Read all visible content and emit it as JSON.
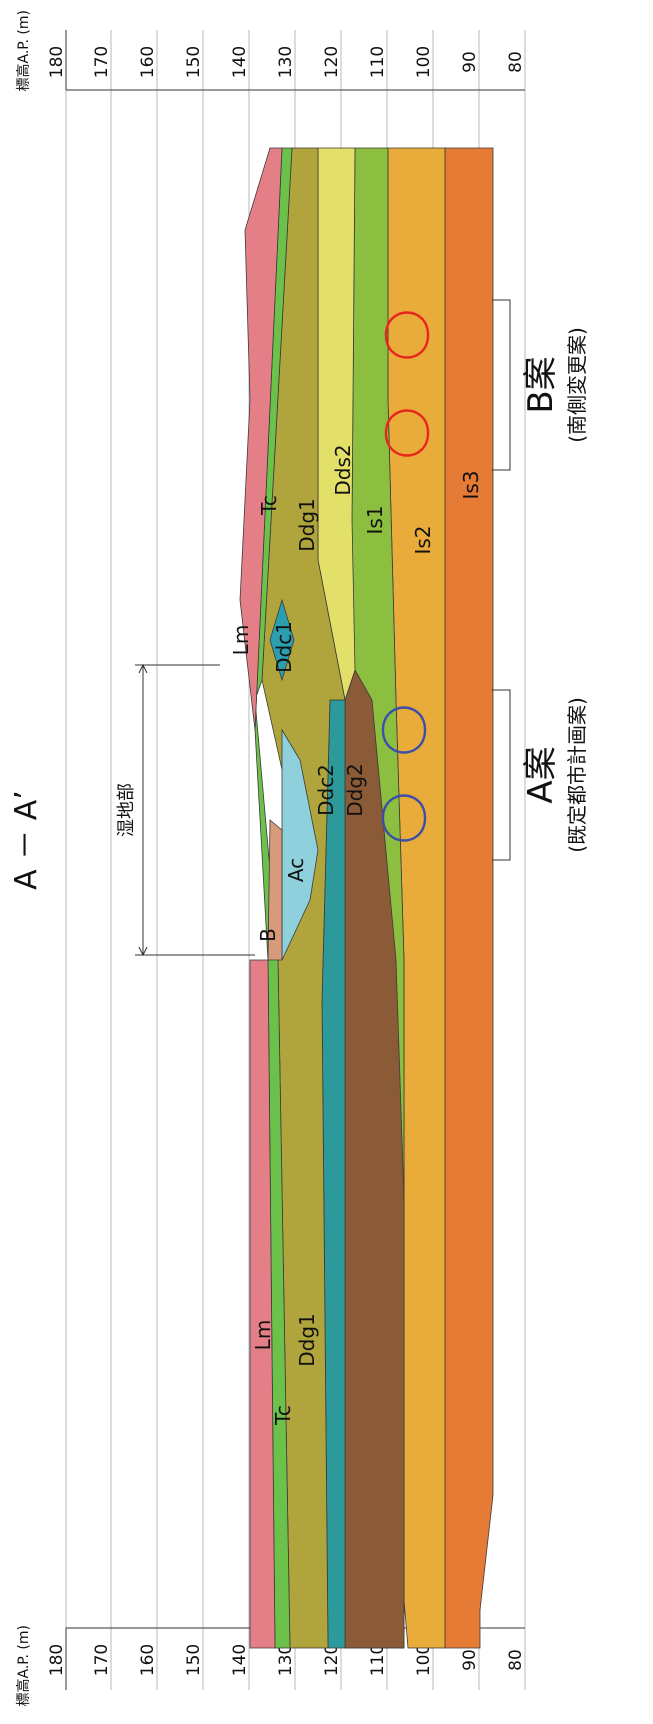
{
  "title": "A － A’",
  "axis": {
    "label_top": "標高A.P. (m)",
    "label_bottom": "標高A.P. (m)",
    "ticks": [
      "180",
      "170",
      "160",
      "150",
      "140",
      "130",
      "120",
      "110",
      "100",
      "90",
      "80"
    ]
  },
  "wetland": {
    "label": "湿地部"
  },
  "layers": [
    {
      "name": "Lm",
      "color": "#e57f87"
    },
    {
      "name": "B",
      "color": "#d79a7a"
    },
    {
      "name": "Ac",
      "color": "#8fd0dd"
    },
    {
      "name": "Tc",
      "color": "#6cc14a"
    },
    {
      "name": "Ddg1",
      "color": "#b0a43c"
    },
    {
      "name": "Ddc1",
      "color": "#2b9eb0"
    },
    {
      "name": "Ddc2",
      "color": "#2c9a9a"
    },
    {
      "name": "Dds2",
      "color": "#e3e06a"
    },
    {
      "name": "Ddg2",
      "color": "#8b5a37"
    },
    {
      "name": "Is1",
      "color": "#8cbe3f"
    },
    {
      "name": "Is2",
      "color": "#e9ac3a"
    },
    {
      "name": "Is3",
      "color": "#e67b35"
    }
  ],
  "labels": {
    "lm_top": "Lm",
    "lm_bottom": "Lm",
    "tc_top": "Tc",
    "tc_bottom": "Tc",
    "ddg1_top": "Ddg1",
    "ddg1_bottom": "Ddg1",
    "dds2": "Dds2",
    "ddc1": "Ddc1",
    "ddc2": "Ddc2",
    "ddg2": "Ddg2",
    "is1": "Is1",
    "is2": "Is2",
    "is3": "Is3",
    "b": "B",
    "ac": "Ac"
  },
  "plans": {
    "a": {
      "title": "A案",
      "subtitle": "(既定都市計画案)",
      "color": "#3c4fa8"
    },
    "b": {
      "title": "B案",
      "subtitle": "(南側変更案)",
      "color": "#e8261d"
    }
  }
}
